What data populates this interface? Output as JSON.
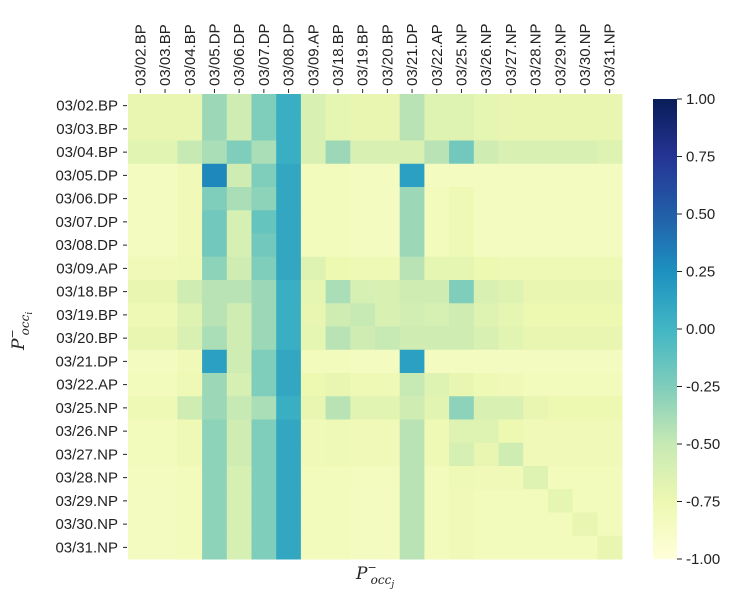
{
  "chart_data": {
    "type": "heatmap",
    "title": "",
    "xlabel": "P_occ_j",
    "ylabel": "P_occ_i",
    "xlabel_parts": {
      "base": "P",
      "sup": "−",
      "sub": "occ",
      "sub2": "j"
    },
    "ylabel_parts": {
      "base": "P",
      "sup": "−",
      "sub": "occ",
      "sub2": "i"
    },
    "x_categories": [
      "03/02.BP",
      "03/03.BP",
      "03/04.BP",
      "03/05.DP",
      "03/06.DP",
      "03/07.DP",
      "03/08.DP",
      "03/09.AP",
      "03/18.BP",
      "03/19.BP",
      "03/20.BP",
      "03/21.DP",
      "03/22.AP",
      "03/25.NP",
      "03/26.NP",
      "03/27.NP",
      "03/28.NP",
      "03/29.NP",
      "03/30.NP",
      "03/31.NP"
    ],
    "y_categories": [
      "03/02.BP",
      "03/03.BP",
      "03/04.BP",
      "03/05.DP",
      "03/06.DP",
      "03/07.DP",
      "03/08.DP",
      "03/09.AP",
      "03/18.BP",
      "03/19.BP",
      "03/20.BP",
      "03/21.DP",
      "03/22.AP",
      "03/25.NP",
      "03/26.NP",
      "03/27.NP",
      "03/28.NP",
      "03/29.NP",
      "03/30.NP",
      "03/31.NP"
    ],
    "values": [
      [
        -0.72,
        -0.72,
        -0.72,
        -0.35,
        -0.55,
        -0.25,
        0.05,
        -0.62,
        -0.7,
        -0.72,
        -0.72,
        -0.45,
        -0.65,
        -0.65,
        -0.7,
        -0.72,
        -0.72,
        -0.72,
        -0.72,
        -0.72
      ],
      [
        -0.72,
        -0.72,
        -0.72,
        -0.35,
        -0.55,
        -0.25,
        0.05,
        -0.62,
        -0.7,
        -0.72,
        -0.72,
        -0.45,
        -0.65,
        -0.65,
        -0.7,
        -0.72,
        -0.72,
        -0.72,
        -0.72,
        -0.72
      ],
      [
        -0.68,
        -0.68,
        -0.5,
        -0.4,
        -0.25,
        -0.4,
        0.05,
        -0.62,
        -0.35,
        -0.62,
        -0.62,
        -0.62,
        -0.45,
        -0.2,
        -0.55,
        -0.62,
        -0.62,
        -0.62,
        -0.62,
        -0.65
      ],
      [
        -0.85,
        -0.85,
        -0.8,
        0.3,
        -0.55,
        -0.25,
        0.1,
        -0.82,
        -0.82,
        -0.85,
        -0.85,
        0.15,
        -0.85,
        -0.85,
        -0.85,
        -0.85,
        -0.85,
        -0.85,
        -0.85,
        -0.85
      ],
      [
        -0.85,
        -0.85,
        -0.8,
        -0.25,
        -0.4,
        -0.3,
        0.1,
        -0.82,
        -0.82,
        -0.85,
        -0.85,
        -0.35,
        -0.82,
        -0.78,
        -0.85,
        -0.85,
        -0.85,
        -0.85,
        -0.85,
        -0.85
      ],
      [
        -0.85,
        -0.85,
        -0.8,
        -0.2,
        -0.6,
        -0.15,
        0.1,
        -0.82,
        -0.82,
        -0.85,
        -0.85,
        -0.35,
        -0.82,
        -0.78,
        -0.85,
        -0.85,
        -0.85,
        -0.85,
        -0.85,
        -0.85
      ],
      [
        -0.85,
        -0.85,
        -0.8,
        -0.2,
        -0.6,
        -0.2,
        0.1,
        -0.82,
        -0.82,
        -0.85,
        -0.85,
        -0.35,
        -0.82,
        -0.78,
        -0.85,
        -0.85,
        -0.85,
        -0.85,
        -0.85,
        -0.85
      ],
      [
        -0.8,
        -0.8,
        -0.78,
        -0.3,
        -0.55,
        -0.25,
        0.1,
        -0.65,
        -0.75,
        -0.78,
        -0.78,
        -0.45,
        -0.7,
        -0.7,
        -0.75,
        -0.78,
        -0.78,
        -0.78,
        -0.78,
        -0.78
      ],
      [
        -0.72,
        -0.72,
        -0.55,
        -0.45,
        -0.45,
        -0.35,
        0.05,
        -0.7,
        -0.4,
        -0.6,
        -0.62,
        -0.55,
        -0.55,
        -0.25,
        -0.62,
        -0.65,
        -0.72,
        -0.72,
        -0.72,
        -0.72
      ],
      [
        -0.78,
        -0.78,
        -0.65,
        -0.45,
        -0.55,
        -0.35,
        0.05,
        -0.72,
        -0.55,
        -0.5,
        -0.62,
        -0.58,
        -0.6,
        -0.55,
        -0.65,
        -0.7,
        -0.75,
        -0.75,
        -0.75,
        -0.75
      ],
      [
        -0.72,
        -0.72,
        -0.62,
        -0.4,
        -0.55,
        -0.35,
        0.05,
        -0.7,
        -0.45,
        -0.55,
        -0.5,
        -0.55,
        -0.55,
        -0.55,
        -0.62,
        -0.68,
        -0.72,
        -0.72,
        -0.72,
        -0.72
      ],
      [
        -0.85,
        -0.85,
        -0.8,
        0.15,
        -0.55,
        -0.25,
        0.1,
        -0.82,
        -0.82,
        -0.85,
        -0.85,
        0.15,
        -0.85,
        -0.85,
        -0.85,
        -0.85,
        -0.85,
        -0.85,
        -0.85,
        -0.85
      ],
      [
        -0.82,
        -0.82,
        -0.78,
        -0.35,
        -0.6,
        -0.25,
        0.1,
        -0.75,
        -0.72,
        -0.78,
        -0.78,
        -0.5,
        -0.65,
        -0.72,
        -0.78,
        -0.8,
        -0.82,
        -0.82,
        -0.82,
        -0.82
      ],
      [
        -0.78,
        -0.78,
        -0.55,
        -0.35,
        -0.5,
        -0.4,
        0.05,
        -0.72,
        -0.45,
        -0.68,
        -0.68,
        -0.55,
        -0.68,
        -0.3,
        -0.62,
        -0.62,
        -0.72,
        -0.75,
        -0.75,
        -0.75
      ],
      [
        -0.82,
        -0.82,
        -0.78,
        -0.3,
        -0.55,
        -0.25,
        0.1,
        -0.8,
        -0.78,
        -0.8,
        -0.8,
        -0.45,
        -0.78,
        -0.65,
        -0.65,
        -0.75,
        -0.8,
        -0.8,
        -0.8,
        -0.8
      ],
      [
        -0.82,
        -0.82,
        -0.78,
        -0.3,
        -0.55,
        -0.25,
        0.1,
        -0.8,
        -0.78,
        -0.8,
        -0.8,
        -0.45,
        -0.78,
        -0.6,
        -0.72,
        -0.55,
        -0.8,
        -0.8,
        -0.8,
        -0.8
      ],
      [
        -0.84,
        -0.84,
        -0.82,
        -0.3,
        -0.6,
        -0.25,
        0.1,
        -0.82,
        -0.82,
        -0.84,
        -0.84,
        -0.45,
        -0.82,
        -0.78,
        -0.8,
        -0.8,
        -0.65,
        -0.82,
        -0.82,
        -0.82
      ],
      [
        -0.85,
        -0.85,
        -0.82,
        -0.3,
        -0.6,
        -0.25,
        0.1,
        -0.82,
        -0.82,
        -0.85,
        -0.85,
        -0.45,
        -0.82,
        -0.8,
        -0.82,
        -0.82,
        -0.82,
        -0.7,
        -0.82,
        -0.82
      ],
      [
        -0.85,
        -0.85,
        -0.82,
        -0.3,
        -0.6,
        -0.25,
        0.1,
        -0.82,
        -0.82,
        -0.85,
        -0.85,
        -0.45,
        -0.82,
        -0.8,
        -0.82,
        -0.82,
        -0.82,
        -0.82,
        -0.72,
        -0.82
      ],
      [
        -0.85,
        -0.85,
        -0.82,
        -0.3,
        -0.6,
        -0.25,
        0.1,
        -0.82,
        -0.82,
        -0.85,
        -0.85,
        -0.45,
        -0.82,
        -0.8,
        -0.82,
        -0.82,
        -0.82,
        -0.82,
        -0.82,
        -0.72
      ]
    ],
    "colorbar": {
      "min": -1.0,
      "max": 1.0,
      "ticks": [
        1.0,
        0.75,
        0.5,
        0.25,
        0.0,
        -0.25,
        -0.5,
        -0.75,
        -1.0
      ],
      "tick_labels": [
        "1.00",
        "0.75",
        "0.50",
        "0.25",
        "0.00",
        "-0.25",
        "-0.50",
        "-0.75",
        "-1.00"
      ],
      "colormap": "YlGnBu",
      "color_stops": [
        "#ffffd9",
        "#edf8b1",
        "#c7e9b4",
        "#7fcdbb",
        "#41b6c4",
        "#1d91c0",
        "#225ea8",
        "#253494",
        "#081d58"
      ]
    }
  }
}
